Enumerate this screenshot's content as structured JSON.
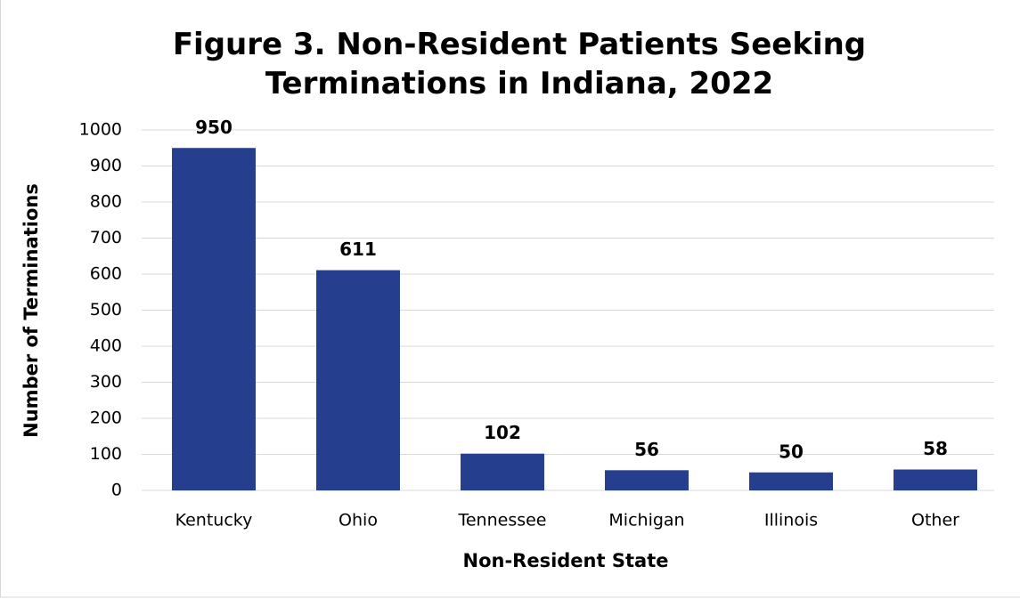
{
  "chart_data": {
    "type": "bar",
    "title": "Figure 3. Non-Resident Patients Seeking Terminations in Indiana, 2022",
    "x_label": "Non-Resident State",
    "y_label": "Number of Terminations",
    "categories": [
      "Kentucky",
      "Ohio",
      "Tennessee",
      "Michigan",
      "Illinois",
      "Other"
    ],
    "values": [
      950,
      611,
      102,
      56,
      50,
      58
    ],
    "color": "#253f8e",
    "ylim": [
      0,
      1000
    ],
    "yticks": [
      0,
      100,
      200,
      300,
      400,
      500,
      600,
      700,
      800,
      900,
      1000
    ],
    "grid": true
  }
}
